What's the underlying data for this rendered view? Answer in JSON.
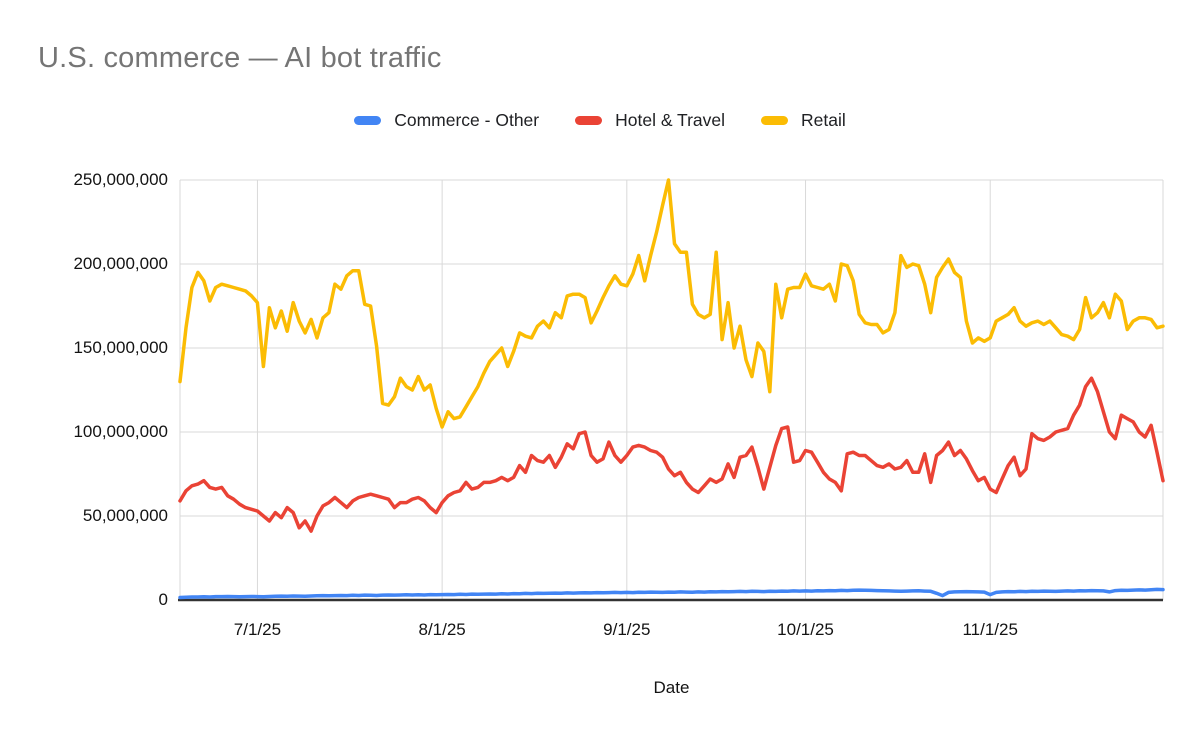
{
  "page": {
    "background": "#ffffff"
  },
  "chart_data": {
    "type": "line",
    "title": "U.S. commerce — AI bot traffic",
    "title_color": "#757575",
    "xlabel": "Date",
    "ylabel": "",
    "ylim": [
      0,
      250000000
    ],
    "values_unit": "millions",
    "y_tick_labels": [
      "0",
      "50,000,000",
      "100,000,000",
      "150,000,000",
      "200,000,000",
      "250,000,000"
    ],
    "x_tick_labels": [
      "7/1/25",
      "8/1/25",
      "9/1/25",
      "10/1/25",
      "11/1/25"
    ],
    "x_tick_day_indices": [
      13,
      44,
      75,
      105,
      136
    ],
    "x_start_date": "6/18/25",
    "x_end_date": "11/30/25",
    "x_frequency": "daily",
    "grid": true,
    "legend_position": "top",
    "axis_color": "#333333",
    "grid_color": "#d9d9d9",
    "series": [
      {
        "name": "Commerce - Other",
        "color": "#4285F4",
        "values": [
          1.5,
          1.6,
          1.8,
          1.8,
          1.9,
          1.8,
          2.0,
          2.0,
          2.1,
          2.0,
          1.9,
          2.0,
          2.1,
          2.0,
          1.9,
          2.1,
          2.2,
          2.3,
          2.2,
          2.4,
          2.3,
          2.2,
          2.4,
          2.5,
          2.6,
          2.5,
          2.6,
          2.7,
          2.6,
          2.8,
          2.7,
          2.9,
          2.8,
          2.7,
          2.9,
          3.0,
          2.9,
          3.0,
          3.1,
          3.0,
          3.1,
          3.0,
          3.2,
          3.1,
          3.2,
          3.3,
          3.2,
          3.4,
          3.3,
          3.5,
          3.4,
          3.5,
          3.6,
          3.5,
          3.7,
          3.6,
          3.8,
          3.7,
          3.9,
          3.8,
          4.0,
          3.9,
          4.0,
          4.1,
          4.0,
          4.2,
          4.1,
          4.2,
          4.3,
          4.2,
          4.4,
          4.3,
          4.4,
          4.5,
          4.4,
          4.5,
          4.4,
          4.6,
          4.5,
          4.7,
          4.6,
          4.5,
          4.7,
          4.6,
          4.8,
          4.7,
          4.6,
          4.8,
          4.7,
          4.9,
          4.8,
          5.0,
          4.9,
          5.0,
          5.1,
          5.0,
          5.2,
          5.1,
          5.0,
          5.2,
          5.1,
          5.3,
          5.2,
          5.4,
          5.3,
          5.4,
          5.3,
          5.5,
          5.4,
          5.6,
          5.5,
          5.7,
          5.6,
          5.8,
          5.9,
          5.8,
          5.7,
          5.6,
          5.5,
          5.4,
          5.3,
          5.2,
          5.3,
          5.4,
          5.5,
          5.3,
          5.2,
          4.0,
          2.6,
          4.5,
          4.8,
          4.9,
          5.0,
          4.9,
          4.8,
          4.7,
          3.2,
          4.5,
          4.8,
          5.0,
          4.9,
          5.1,
          5.0,
          5.2,
          5.1,
          5.3,
          5.2,
          5.1,
          5.3,
          5.4,
          5.3,
          5.5,
          5.4,
          5.6,
          5.5,
          5.4,
          4.8,
          5.6,
          5.8,
          5.7,
          5.9,
          6.0,
          5.9,
          6.1,
          6.3,
          6.2
        ]
      },
      {
        "name": "Hotel & Travel",
        "color": "#EA4335",
        "values": [
          59,
          65,
          68,
          69,
          71,
          67,
          66,
          67,
          62,
          60,
          57,
          55,
          54,
          53,
          50,
          47,
          52,
          49,
          55,
          52,
          43,
          47,
          41,
          50,
          56,
          58,
          61,
          58,
          55,
          59,
          61,
          62,
          63,
          62,
          61,
          60,
          55,
          58,
          58,
          60,
          61,
          59,
          55,
          52,
          58,
          62,
          64,
          65,
          70,
          66,
          67,
          70,
          70,
          71,
          73,
          71,
          73,
          80,
          76,
          86,
          83,
          82,
          86,
          79,
          85,
          93,
          90,
          99,
          100,
          86,
          82,
          84,
          94,
          86,
          82,
          86,
          91,
          92,
          91,
          89,
          88,
          85,
          78,
          74,
          76,
          70,
          66,
          64,
          68,
          72,
          70,
          72,
          81,
          73,
          85,
          86,
          91,
          79,
          66,
          79,
          92,
          102,
          103,
          82,
          83,
          89,
          88,
          82,
          76,
          72,
          70,
          65,
          87,
          88,
          86,
          86,
          83,
          80,
          79,
          81,
          78,
          79,
          83,
          76,
          76,
          87,
          70,
          86,
          89,
          94,
          86,
          89,
          84,
          77,
          71,
          73,
          66,
          64,
          72,
          80,
          85,
          74,
          78,
          99,
          96,
          95,
          97,
          100,
          101,
          102,
          110,
          116,
          127,
          132,
          124,
          112,
          100,
          96,
          110,
          108,
          106,
          100,
          97,
          104,
          88,
          71
        ]
      },
      {
        "name": "Retail",
        "color": "#FBBC04",
        "values": [
          130,
          162,
          186,
          195,
          190,
          178,
          186,
          188,
          187,
          186,
          185,
          184,
          181,
          177,
          139,
          174,
          162,
          172,
          160,
          177,
          166,
          159,
          167,
          156,
          168,
          171,
          188,
          185,
          193,
          196,
          196,
          176,
          175,
          151,
          117,
          116,
          121,
          132,
          127,
          125,
          133,
          125,
          128,
          114,
          103,
          112,
          108,
          109,
          115,
          121,
          127,
          135,
          142,
          146,
          150,
          139,
          148,
          159,
          157,
          156,
          163,
          166,
          162,
          171,
          168,
          181,
          182,
          182,
          180,
          165,
          172,
          180,
          187,
          193,
          188,
          187,
          194,
          205,
          190,
          205,
          219,
          235,
          250,
          212,
          207,
          207,
          176,
          170,
          168,
          170,
          207,
          155,
          177,
          150,
          163,
          143,
          133,
          153,
          148,
          124,
          188,
          168,
          185,
          186,
          186,
          194,
          187,
          186,
          185,
          188,
          178,
          200,
          199,
          190,
          170,
          165,
          164,
          164,
          159,
          161,
          171,
          205,
          198,
          200,
          199,
          188,
          171,
          192,
          198,
          203,
          195,
          192,
          166,
          153,
          156,
          154,
          156,
          166,
          168,
          170,
          174,
          166,
          163,
          165,
          166,
          164,
          166,
          162,
          158,
          157,
          155,
          161,
          180,
          168,
          171,
          177,
          168,
          182,
          178,
          161,
          166,
          168,
          168,
          167,
          162,
          163
        ]
      }
    ]
  }
}
